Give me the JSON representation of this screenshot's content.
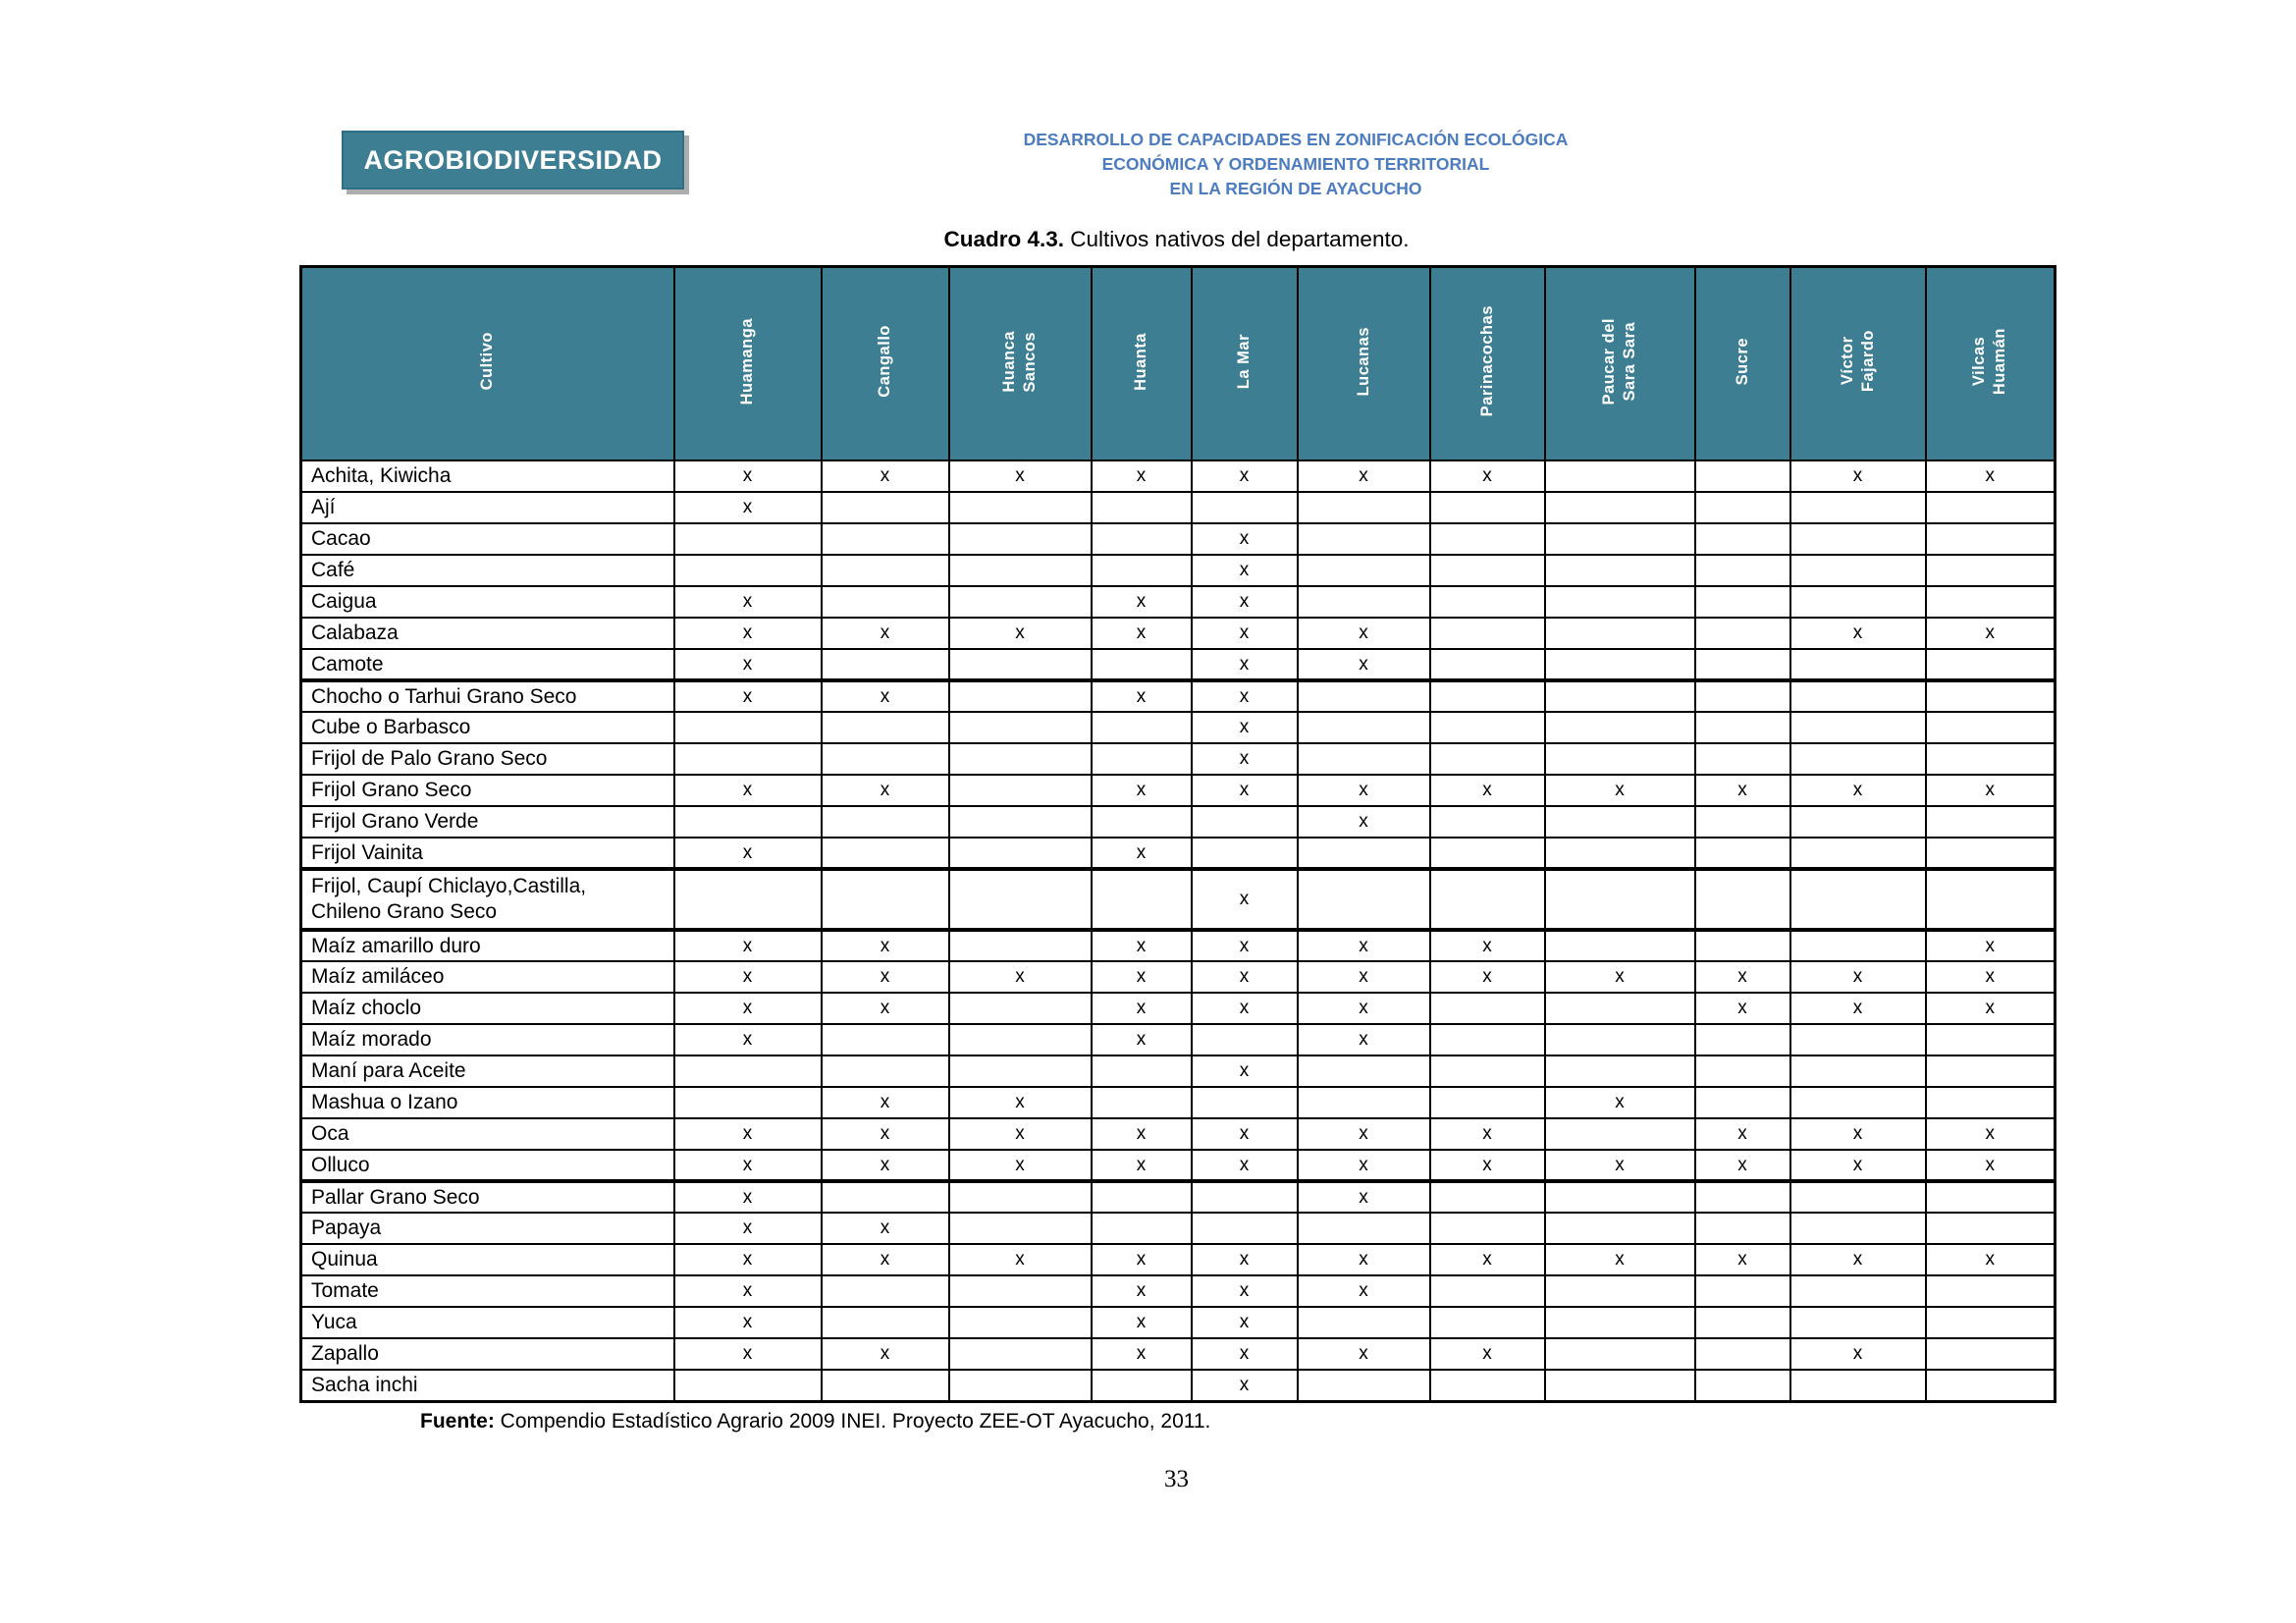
{
  "page": {
    "badge": "AGROBIODIVERSIDAD",
    "header_lines": [
      "DESARROLLO DE CAPACIDADES EN ZONIFICACIÓN ECOLÓGICA",
      "ECONÓMICA Y ORDENAMIENTO TERRITORIAL",
      "EN LA REGIÓN DE AYACUCHO"
    ],
    "title_bold": "Cuadro 4.3.",
    "title_rest": " Cultivos nativos del departamento.",
    "source_bold": "Fuente:",
    "source_rest": " Compendio Estadístico Agrario 2009 INEI. Proyecto ZEE-OT Ayacucho, 2011.",
    "page_number": "33"
  },
  "colors": {
    "teal": "#3E7E93",
    "header_blue": "#4D7CBF",
    "badge_shadow": "#ADADAD"
  },
  "table": {
    "first_header": "Cultivo",
    "mark_symbol": "x",
    "columns": [
      "Huamanga",
      "Cangallo",
      "Huanca\nSancos",
      "Huanta",
      "La Mar",
      "Lucanas",
      "Parinacochas",
      "Paucar del\nSara Sara",
      "Sucre",
      "Víctor\nFajardo",
      "Vilcas\nHuamán"
    ],
    "rows": [
      {
        "name": "Achita, Kiwicha",
        "marks": [
          "x",
          "x",
          "x",
          "x",
          "x",
          "x",
          "x",
          "",
          "",
          "x",
          "x"
        ]
      },
      {
        "name": "Ají",
        "marks": [
          "x",
          "",
          "",
          "",
          "",
          "",
          "",
          "",
          "",
          "",
          ""
        ]
      },
      {
        "name": "Cacao",
        "marks": [
          "",
          "",
          "",
          "",
          "x",
          "",
          "",
          "",
          "",
          "",
          ""
        ]
      },
      {
        "name": "Café",
        "marks": [
          "",
          "",
          "",
          "",
          "x",
          "",
          "",
          "",
          "",
          "",
          ""
        ]
      },
      {
        "name": "Caigua",
        "marks": [
          "x",
          "",
          "",
          "x",
          "x",
          "",
          "",
          "",
          "",
          "",
          ""
        ]
      },
      {
        "name": "Calabaza",
        "marks": [
          "x",
          "x",
          "x",
          "x",
          "x",
          "x",
          "",
          "",
          "",
          "x",
          "x"
        ]
      },
      {
        "name": "Camote",
        "marks": [
          "x",
          "",
          "",
          "",
          "x",
          "x",
          "",
          "",
          "",
          "",
          ""
        ],
        "thick": true
      },
      {
        "name": "Chocho o Tarhui Grano Seco",
        "marks": [
          "x",
          "x",
          "",
          "x",
          "x",
          "",
          "",
          "",
          "",
          "",
          ""
        ]
      },
      {
        "name": "Cube o Barbasco",
        "marks": [
          "",
          "",
          "",
          "",
          "x",
          "",
          "",
          "",
          "",
          "",
          ""
        ]
      },
      {
        "name": "Frijol de Palo Grano Seco",
        "marks": [
          "",
          "",
          "",
          "",
          "x",
          "",
          "",
          "",
          "",
          "",
          ""
        ]
      },
      {
        "name": "Frijol Grano Seco",
        "marks": [
          "x",
          "x",
          "",
          "x",
          "x",
          "x",
          "x",
          "x",
          "x",
          "x",
          "x"
        ]
      },
      {
        "name": "Frijol Grano Verde",
        "marks": [
          "",
          "",
          "",
          "",
          "",
          "x",
          "",
          "",
          "",
          "",
          ""
        ]
      },
      {
        "name": "Frijol Vainita",
        "marks": [
          "x",
          "",
          "",
          "x",
          "",
          "",
          "",
          "",
          "",
          "",
          ""
        ],
        "thick": true
      },
      {
        "name": "Frijol, Caupí Chiclayo,Castilla,\nChileno Grano Seco",
        "marks": [
          "",
          "",
          "",
          "",
          "x",
          "",
          "",
          "",
          "",
          "",
          ""
        ],
        "thick": true
      },
      {
        "name": "Maíz amarillo duro",
        "marks": [
          "x",
          "x",
          "",
          "x",
          "x",
          "x",
          "x",
          "",
          "",
          "",
          "x"
        ]
      },
      {
        "name": "Maíz amiláceo",
        "marks": [
          "x",
          "x",
          "x",
          "x",
          "x",
          "x",
          "x",
          "x",
          "x",
          "x",
          "x"
        ]
      },
      {
        "name": "Maíz choclo",
        "marks": [
          "x",
          "x",
          "",
          "x",
          "x",
          "x",
          "",
          "",
          "x",
          "x",
          "x"
        ]
      },
      {
        "name": "Maíz morado",
        "marks": [
          "x",
          "",
          "",
          "x",
          "",
          "x",
          "",
          "",
          "",
          "",
          ""
        ]
      },
      {
        "name": "Maní para Aceite",
        "marks": [
          "",
          "",
          "",
          "",
          "x",
          "",
          "",
          "",
          "",
          "",
          ""
        ]
      },
      {
        "name": "Mashua o Izano",
        "marks": [
          "",
          "x",
          "x",
          "",
          "",
          "",
          "",
          "x",
          "",
          "",
          ""
        ]
      },
      {
        "name": "Oca",
        "marks": [
          "x",
          "x",
          "x",
          "x",
          "x",
          "x",
          "x",
          "",
          "x",
          "x",
          "x"
        ]
      },
      {
        "name": "Olluco",
        "marks": [
          "x",
          "x",
          "x",
          "x",
          "x",
          "x",
          "x",
          "x",
          "x",
          "x",
          "x"
        ],
        "thick": true
      },
      {
        "name": "Pallar Grano Seco",
        "marks": [
          "x",
          "",
          "",
          "",
          "",
          "x",
          "",
          "",
          "",
          "",
          ""
        ]
      },
      {
        "name": "Papaya",
        "marks": [
          "x",
          "x",
          "",
          "",
          "",
          "",
          "",
          "",
          "",
          "",
          ""
        ]
      },
      {
        "name": "Quinua",
        "marks": [
          "x",
          "x",
          "x",
          "x",
          "x",
          "x",
          "x",
          "x",
          "x",
          "x",
          "x"
        ]
      },
      {
        "name": "Tomate",
        "marks": [
          "x",
          "",
          "",
          "x",
          "x",
          "x",
          "",
          "",
          "",
          "",
          ""
        ]
      },
      {
        "name": "Yuca",
        "marks": [
          "x",
          "",
          "",
          "x",
          "x",
          "",
          "",
          "",
          "",
          "",
          ""
        ]
      },
      {
        "name": "Zapallo",
        "marks": [
          "x",
          "x",
          "",
          "x",
          "x",
          "x",
          "x",
          "",
          "",
          "x",
          ""
        ]
      },
      {
        "name": "Sacha inchi",
        "marks": [
          "",
          "",
          "",
          "",
          "x",
          "",
          "",
          "",
          "",
          "",
          ""
        ]
      }
    ]
  }
}
